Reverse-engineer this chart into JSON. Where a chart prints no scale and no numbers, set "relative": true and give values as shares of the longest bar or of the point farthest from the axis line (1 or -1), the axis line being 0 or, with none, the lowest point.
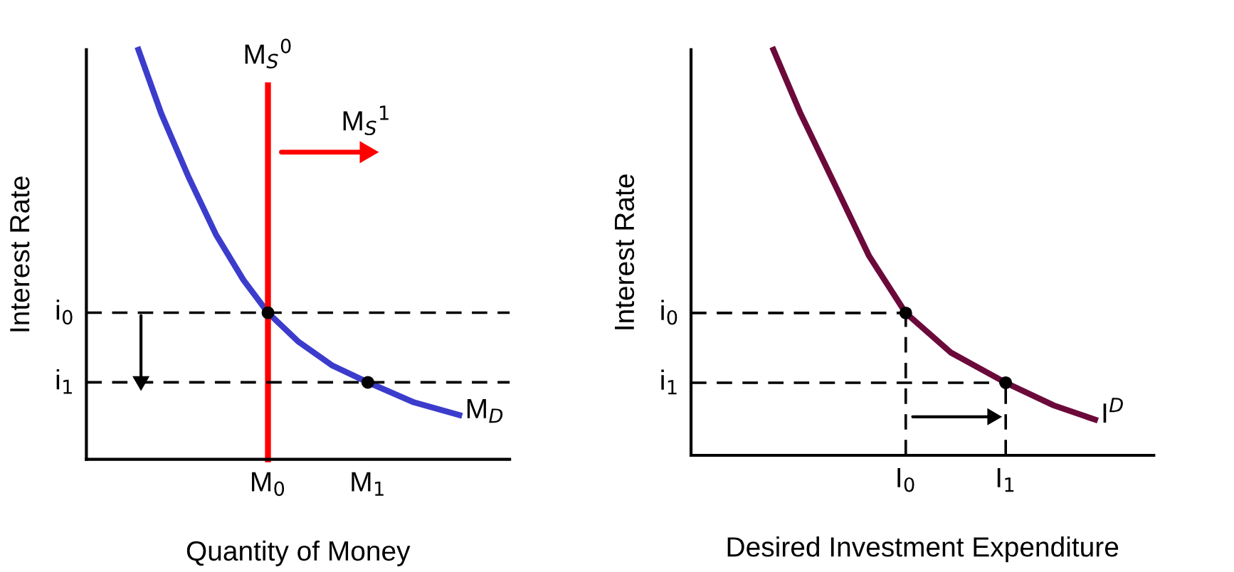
{
  "chart_data": [
    {
      "type": "line",
      "relative": true,
      "xlabel": "Quantity of Money",
      "ylabel": "Interest Rate",
      "xlim": [
        0,
        1
      ],
      "xticks": [
        {
          "value": 0.429,
          "label": "M$_{0}$"
        },
        {
          "value": 0.665,
          "label": "M$_{1}$"
        }
      ],
      "series": [
        {
          "name": "M$_{D}$",
          "color": "#3c3ccc",
          "x": [
            0.123,
            0.177,
            0.242,
            0.306,
            0.371,
            0.429,
            0.5,
            0.581,
            0.665,
            0.774,
            0.881
          ],
          "values": [
            1.0,
            0.844,
            0.688,
            0.549,
            0.438,
            0.358,
            0.288,
            0.229,
            0.188,
            0.139,
            0.108
          ]
        },
        {
          "color": "#ff0000",
          "x": [
            0.429,
            0.429
          ],
          "values": [
            0,
            0.913
          ]
        },
        {
          "color": "#000000",
          "x": [
            0,
            1
          ],
          "values": [
            0.358,
            0.358
          ],
          "line_style": "dashed"
        },
        {
          "color": "#000000",
          "x": [
            0,
            1
          ],
          "values": [
            0.188,
            0.188
          ],
          "line_style": "dashed"
        },
        {
          "color": "#ff0000",
          "marker": "triangle",
          "x": [
            0.461,
            0.661
          ],
          "values": [
            0.75,
            0.75
          ]
        },
        {
          "color": "#000000",
          "marker": "triangle",
          "x": [
            0.129,
            0.129
          ],
          "values": [
            0.351,
            0.191
          ]
        },
        {
          "type": "scatter",
          "color": "#000000",
          "x": [
            0.429,
            0.665
          ],
          "values": [
            0.358,
            0.188
          ]
        }
      ],
      "annotations": [
        {
          "text": "M$_{S}$$^{0}$",
          "x": 0.429,
          "y": 0.913
        },
        {
          "text": "M$_{S}$$^{1}$",
          "x": 0.661,
          "y": 0.75
        },
        {
          "text": "i$_{0}$",
          "x": 0,
          "y": 0.358
        },
        {
          "text": "i$_{1}$",
          "x": 0,
          "y": 0.188
        }
      ]
    },
    {
      "type": "line",
      "relative": true,
      "xlabel": "Desired Investment Expenditure",
      "ylabel": "Interest Rate",
      "xlim": [
        0,
        1
      ],
      "xticks": [
        {
          "value": 0.464,
          "label": "I$_{0}$"
        },
        {
          "value": 0.68,
          "label": "I$_{1}$"
        }
      ],
      "annotations": [
        {
          "text": "i$_{0}$",
          "x": 0,
          "y": 0.351
        },
        {
          "text": "i$_{1}$",
          "x": 0,
          "y": 0.179
        }
      ],
      "series": [
        {
          "name": "I$^{D}$",
          "color": "#6b0a3a",
          "x": [
            0.178,
            0.237,
            0.311,
            0.385,
            0.464,
            0.562,
            0.68,
            0.784,
            0.873
          ],
          "values": [
            1.0,
            0.842,
            0.667,
            0.491,
            0.351,
            0.253,
            0.179,
            0.123,
            0.088
          ]
        },
        {
          "color": "#000000",
          "x": [
            0,
            0.464
          ],
          "values": [
            0.351,
            0.351
          ],
          "line_style": "dashed"
        },
        {
          "color": "#000000",
          "x": [
            0,
            0.68
          ],
          "values": [
            0.179,
            0.179
          ],
          "line_style": "dashed"
        },
        {
          "color": "#000000",
          "x": [
            0.464,
            0.464
          ],
          "values": [
            0,
            0.351
          ],
          "line_style": "dashed"
        },
        {
          "color": "#000000",
          "x": [
            0.68,
            0.68
          ],
          "values": [
            0,
            0.179
          ],
          "line_style": "dashed"
        },
        {
          "color": "#000000",
          "marker": "triangle",
          "x": [
            0.479,
            0.651
          ],
          "values": [
            0.095,
            0.095
          ]
        },
        {
          "type": "scatter",
          "color": "#000000",
          "x": [
            0.464,
            0.68
          ],
          "values": [
            0.351,
            0.179
          ]
        }
      ]
    }
  ]
}
